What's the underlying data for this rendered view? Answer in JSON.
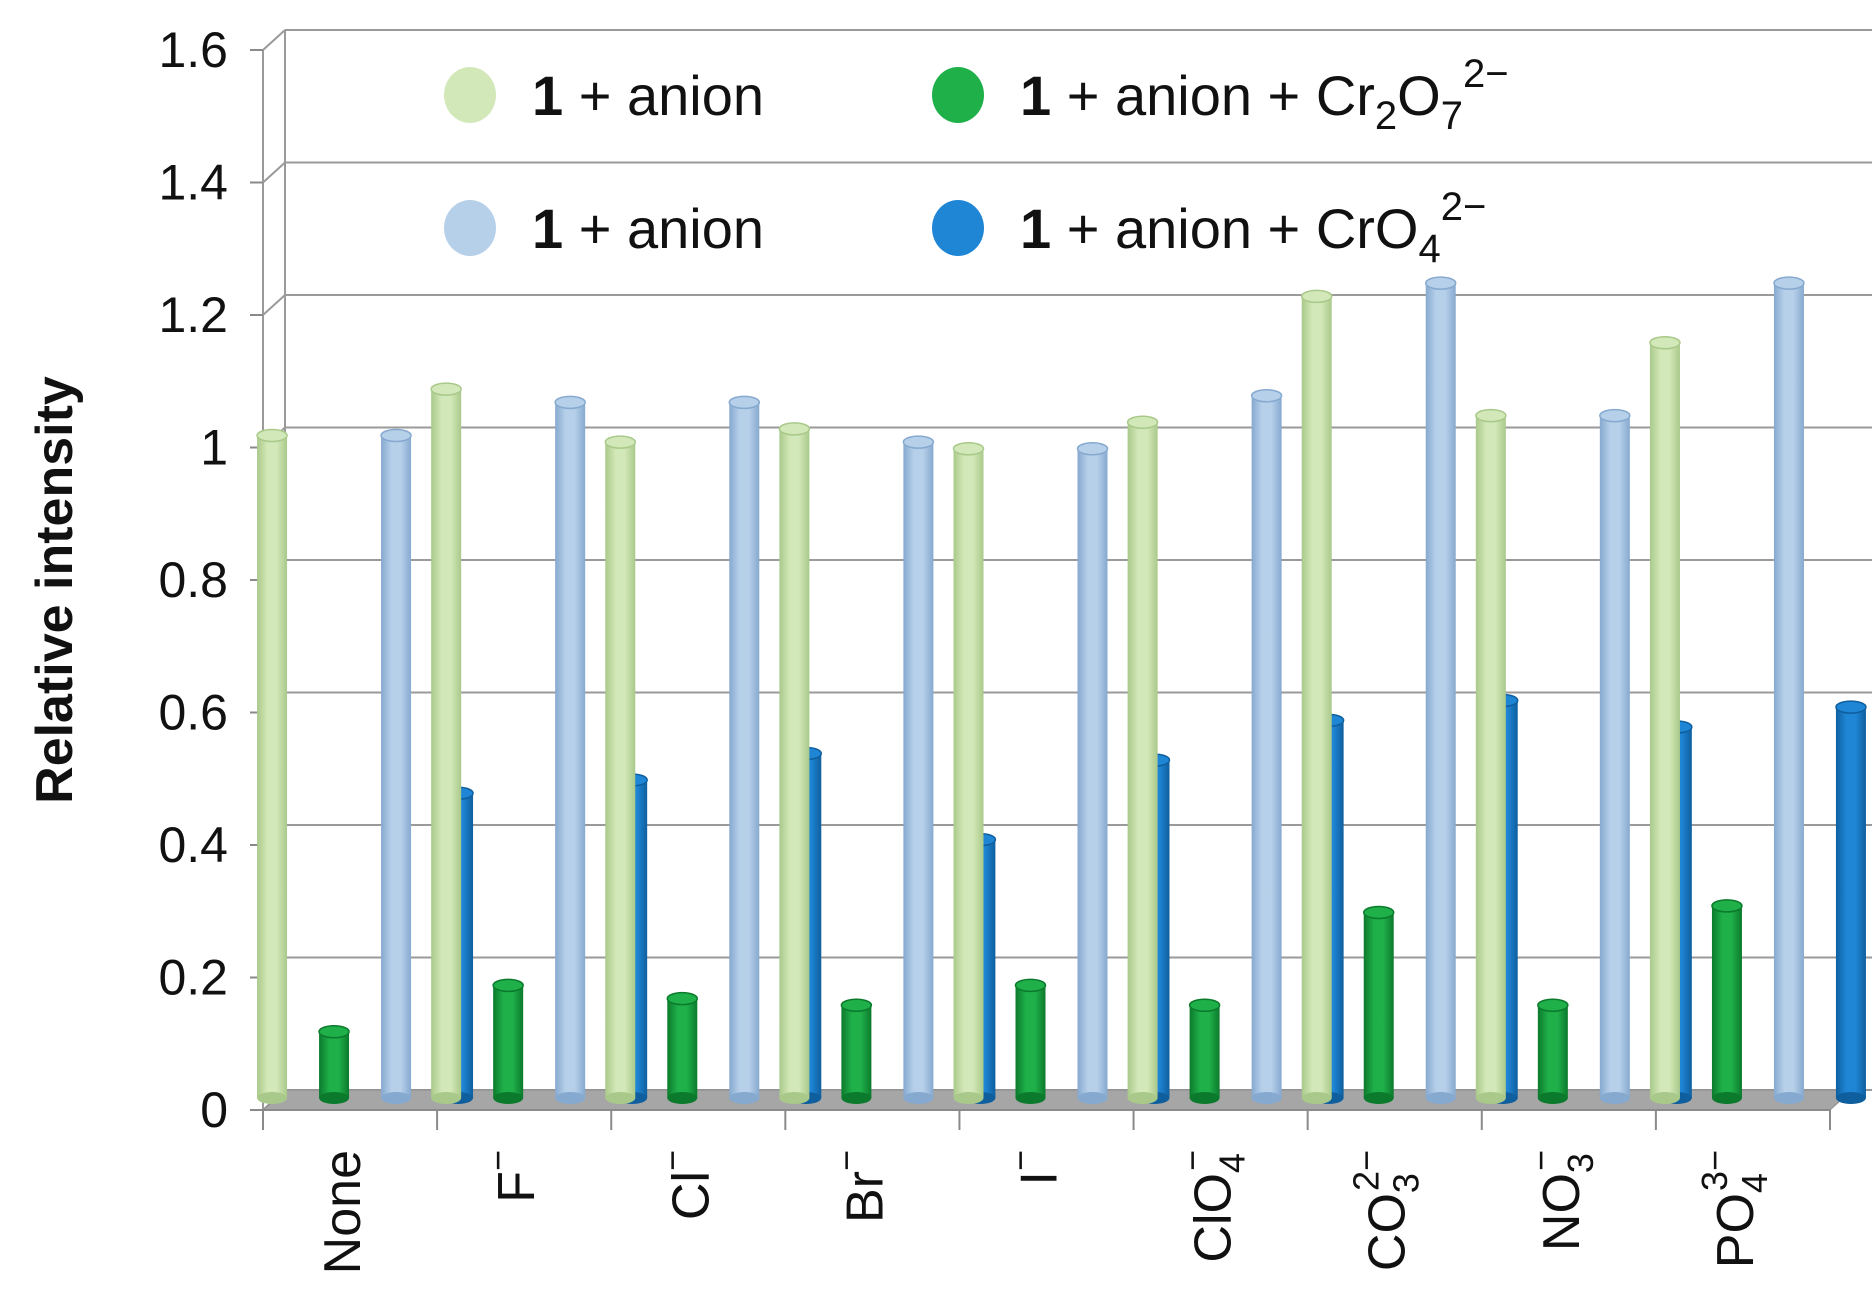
{
  "chart_data": {
    "type": "bar",
    "ylabel": "Relative intensity",
    "xlabel": "",
    "ylim": [
      0,
      1.6
    ],
    "yticks": [
      "0",
      "0.2",
      "0.4",
      "0.6",
      "0.8",
      "1",
      "1.2",
      "1.4",
      "1.6"
    ],
    "grid": true,
    "categories": [
      {
        "base": "None",
        "sub": "",
        "sup": ""
      },
      {
        "base": "F",
        "sub": "",
        "sup": "−"
      },
      {
        "base": "Cl",
        "sub": "",
        "sup": "−"
      },
      {
        "base": "Br",
        "sub": "",
        "sup": "−"
      },
      {
        "base": "I",
        "sub": "",
        "sup": "−"
      },
      {
        "base": "ClO",
        "sub": "4",
        "sup": "−"
      },
      {
        "base": "CO",
        "sub": "3",
        "sup": "2−"
      },
      {
        "base": "NO",
        "sub": "3",
        "sup": "−"
      },
      {
        "base": "PO",
        "sub": "4",
        "sup": "3−"
      }
    ],
    "series": [
      {
        "legend_bold": "1",
        "legend_text": " + anion",
        "legend_species": "",
        "legend_sub": "",
        "legend_sup": "",
        "color": "#d3e8b8",
        "dark": "#a9c98a",
        "values": [
          1.0,
          1.07,
          0.99,
          1.01,
          0.98,
          1.02,
          1.21,
          1.03,
          1.14
        ]
      },
      {
        "legend_bold": "1",
        "legend_text": " + anion + ",
        "legend_species": "Cr",
        "legend_sub": "2",
        "legend_species2": "O",
        "legend_sub2": "7",
        "legend_sup": "2−",
        "color": "#1fb04a",
        "dark": "#0c7a2c",
        "values": [
          0.1,
          0.17,
          0.15,
          0.14,
          0.17,
          0.14,
          0.28,
          0.14,
          0.29
        ]
      },
      {
        "legend_bold": "1",
        "legend_text": " + anion",
        "legend_species": "",
        "legend_sub": "",
        "legend_sup": "",
        "color": "#b7d0ea",
        "dark": "#86a9cf",
        "values": [
          1.0,
          1.05,
          1.05,
          0.99,
          0.98,
          1.06,
          1.23,
          1.03,
          1.23
        ]
      },
      {
        "legend_bold": "1",
        "legend_text": " + anion + ",
        "legend_species": "CrO",
        "legend_sub": "4",
        "legend_sup": "2−",
        "color": "#1f86d6",
        "dark": "#0f5f9e",
        "values": [
          0.46,
          0.48,
          0.52,
          0.39,
          0.51,
          0.57,
          0.6,
          0.56,
          0.59
        ]
      }
    ],
    "legend_position": "top"
  }
}
